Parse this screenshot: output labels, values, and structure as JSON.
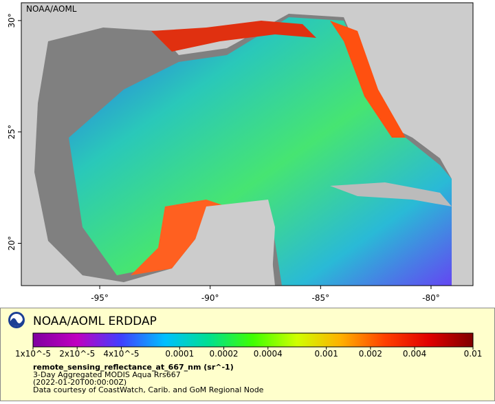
{
  "map": {
    "label": "NOAA/AOML",
    "xlim": [
      -98.55,
      -78.1
    ],
    "ylim": [
      18.1,
      30.8
    ],
    "xticks": [
      {
        "value": -95,
        "label": "-95°"
      },
      {
        "value": -90,
        "label": "-90°"
      },
      {
        "value": -85,
        "label": "-85°"
      },
      {
        "value": -80,
        "label": "-80°"
      }
    ],
    "yticks": [
      {
        "value": 20,
        "label": "20°"
      },
      {
        "value": 25,
        "label": "25°"
      },
      {
        "value": 30,
        "label": "30°"
      }
    ]
  },
  "legend": {
    "title": "NOAA/AOML ERDDAP",
    "colorbar": {
      "log_scale": true,
      "lim": [
        1e-05,
        0.01
      ],
      "colors": [
        "#7f00a0",
        "#c000c0",
        "#4040ff",
        "#00c0ff",
        "#00e090",
        "#40ff00",
        "#d0ff00",
        "#ffb000",
        "#ff4000",
        "#e00000",
        "#800000"
      ],
      "ticks": [
        {
          "value": 1e-05,
          "label": "1x10^-5"
        },
        {
          "value": 2e-05,
          "label": "2x10^-5"
        },
        {
          "value": 4e-05,
          "label": "4x10^-5"
        },
        {
          "value": 0.0001,
          "label": "0.0001"
        },
        {
          "value": 0.0002,
          "label": "0.0002"
        },
        {
          "value": 0.0004,
          "label": "0.0004"
        },
        {
          "value": 0.001,
          "label": "0.001"
        },
        {
          "value": 0.002,
          "label": "0.002"
        },
        {
          "value": 0.004,
          "label": "0.004"
        },
        {
          "value": 0.01,
          "label": "0.01"
        }
      ]
    },
    "variable": "remote_sensing_reflectance_at_667_nm (sr^-1)",
    "lines": [
      "3-Day Aggregated MODIS Aqua Rrs667",
      "(2022-01-20T00:00:00Z)",
      "Data courtesy of CoastWatch, Carib. and GoM Regional Node"
    ]
  }
}
